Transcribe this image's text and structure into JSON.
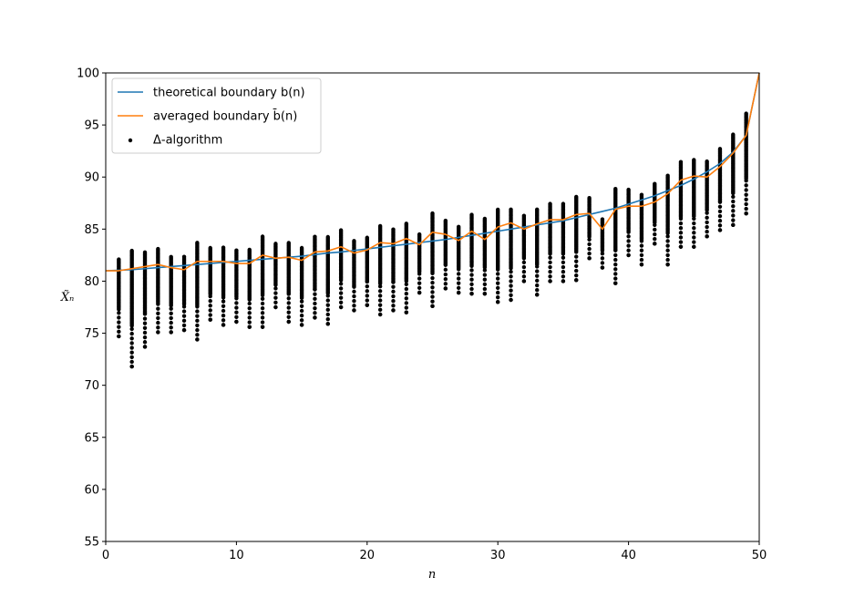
{
  "chart_data": {
    "type": "line",
    "title": "",
    "xlabel": "n",
    "ylabel": "X̃ₙ",
    "xlim": [
      0,
      50
    ],
    "ylim": [
      55,
      100
    ],
    "xticks": [
      "0",
      "10",
      "20",
      "30",
      "40",
      "50"
    ],
    "yticks": [
      "55",
      "60",
      "65",
      "70",
      "75",
      "80",
      "85",
      "90",
      "95",
      "100"
    ],
    "grid": false,
    "legend_position": "top-left",
    "colors": {
      "theoretical": "#1f77b4",
      "averaged": "#ff7f0e",
      "scatter": "#000000"
    },
    "legend": [
      {
        "label": "theoretical boundary b(n)",
        "kind": "line",
        "color": "#1f77b4"
      },
      {
        "label": "averaged boundary b̄(n)",
        "kind": "line",
        "color": "#ff7f0e"
      },
      {
        "label": "Δ-algorithm",
        "kind": "dot",
        "color": "#000000"
      }
    ],
    "series": [
      {
        "name": "theoretical boundary b(n)",
        "x": [
          0,
          1,
          2,
          3,
          4,
          5,
          6,
          7,
          8,
          9,
          10,
          11,
          12,
          13,
          14,
          15,
          16,
          17,
          18,
          19,
          20,
          21,
          22,
          23,
          24,
          25,
          26,
          27,
          28,
          29,
          30,
          31,
          32,
          33,
          34,
          35,
          36,
          37,
          38,
          39,
          40,
          41,
          42,
          43,
          44,
          45,
          46,
          47,
          48,
          49,
          50
        ],
        "values": [
          81.0,
          81.05,
          81.1,
          81.2,
          81.3,
          81.4,
          81.5,
          81.6,
          81.7,
          81.8,
          81.9,
          82.0,
          82.1,
          82.2,
          82.3,
          82.4,
          82.55,
          82.7,
          82.8,
          82.95,
          83.1,
          83.25,
          83.4,
          83.55,
          83.7,
          83.85,
          84.0,
          84.2,
          84.4,
          84.6,
          84.8,
          85.0,
          85.2,
          85.4,
          85.6,
          85.8,
          86.1,
          86.4,
          86.7,
          87.0,
          87.4,
          87.8,
          88.2,
          88.7,
          89.2,
          89.8,
          90.5,
          91.3,
          92.4,
          94.0,
          100.0
        ]
      },
      {
        "name": "averaged boundary b̄(n)",
        "x": [
          0,
          1,
          2,
          3,
          4,
          5,
          6,
          7,
          8,
          9,
          10,
          11,
          12,
          13,
          14,
          15,
          16,
          17,
          18,
          19,
          20,
          21,
          22,
          23,
          24,
          25,
          26,
          27,
          28,
          29,
          30,
          31,
          32,
          33,
          34,
          35,
          36,
          37,
          38,
          39,
          40,
          41,
          42,
          43,
          44,
          45,
          46,
          47,
          48,
          49,
          50
        ],
        "values": [
          81.0,
          81.0,
          81.2,
          81.4,
          81.6,
          81.3,
          81.1,
          81.9,
          81.9,
          81.9,
          81.7,
          81.7,
          82.5,
          82.2,
          82.3,
          82.0,
          82.8,
          82.9,
          83.3,
          82.7,
          83.0,
          83.7,
          83.6,
          84.1,
          83.5,
          84.7,
          84.5,
          83.9,
          84.8,
          84.0,
          85.2,
          85.6,
          85.0,
          85.5,
          85.9,
          85.9,
          86.4,
          86.5,
          85.0,
          86.9,
          87.2,
          87.2,
          87.6,
          88.4,
          89.7,
          90.1,
          90.0,
          91.0,
          92.3,
          94.0,
          100.0
        ]
      },
      {
        "name": "Δ-algorithm",
        "type": "scatter",
        "x": [
          1,
          2,
          3,
          4,
          5,
          6,
          7,
          8,
          9,
          10,
          11,
          12,
          13,
          14,
          15,
          16,
          17,
          18,
          19,
          20,
          21,
          22,
          23,
          24,
          25,
          26,
          27,
          28,
          29,
          30,
          31,
          32,
          33,
          34,
          35,
          36,
          37,
          38,
          39,
          40,
          41,
          42,
          43,
          44,
          45,
          46,
          47,
          48,
          49
        ],
        "min": [
          74.7,
          71.8,
          73.7,
          75.1,
          75.1,
          75.3,
          74.4,
          76.3,
          75.8,
          76.1,
          75.6,
          75.6,
          77.5,
          76.1,
          75.8,
          76.5,
          75.9,
          77.5,
          77.2,
          77.7,
          76.8,
          77.2,
          77.0,
          78.9,
          77.6,
          79.3,
          78.9,
          78.8,
          78.8,
          78.0,
          78.2,
          80.0,
          78.7,
          80.0,
          80.0,
          80.1,
          82.2,
          81.3,
          79.8,
          82.5,
          81.6,
          83.6,
          81.6,
          83.3,
          83.3,
          84.3,
          84.9,
          85.4,
          86.5
        ],
        "max": [
          82.1,
          83.0,
          82.8,
          83.2,
          82.4,
          82.4,
          83.8,
          83.3,
          83.3,
          83.0,
          83.1,
          84.3,
          83.6,
          83.7,
          83.2,
          84.3,
          84.3,
          84.9,
          83.9,
          84.2,
          85.3,
          85.0,
          85.6,
          84.6,
          86.6,
          85.9,
          85.3,
          86.4,
          86.0,
          86.9,
          86.9,
          86.3,
          87.0,
          87.5,
          87.5,
          88.2,
          88.1,
          86.0,
          88.9,
          88.8,
          88.4,
          89.4,
          90.2,
          91.5,
          91.7,
          91.5,
          92.8,
          94.1,
          96.1
        ]
      }
    ]
  }
}
